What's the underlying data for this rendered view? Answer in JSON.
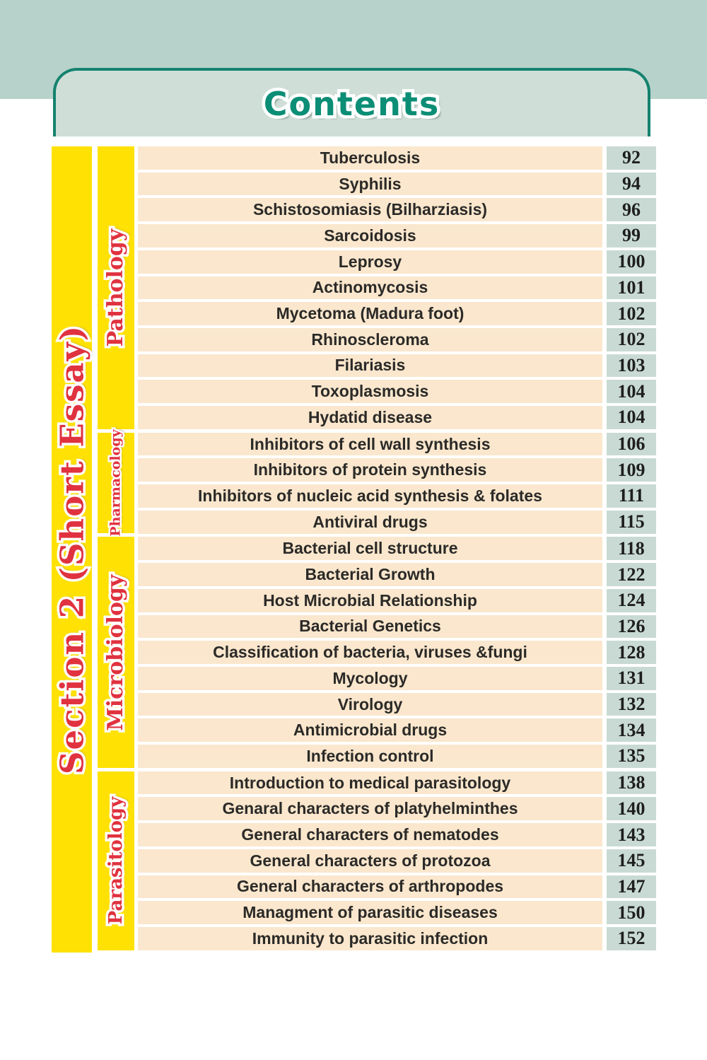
{
  "page": {
    "title": "Contents"
  },
  "section_bar": {
    "label": "Section 2 (Short Essay)"
  },
  "colors": {
    "top_band": "#b7d2ca",
    "header_fill": "#cfdfd8",
    "header_border": "#14826e",
    "title_text": "#0b8e75",
    "bar_yellow": "#ffe103",
    "label_red": "#e0323f",
    "topic_cell": "#fae7cd",
    "page_number_cell": "#c9dad4",
    "topic_text": "#2b2a28"
  },
  "sections": [
    {
      "name": "Pathology",
      "rows": [
        {
          "topic": "Tuberculosis",
          "page": "92"
        },
        {
          "topic": "Syphilis",
          "page": "94"
        },
        {
          "topic": "Schistosomiasis (Bilharziasis)",
          "page": "96"
        },
        {
          "topic": "Sarcoidosis",
          "page": "99"
        },
        {
          "topic": "Leprosy",
          "page": "100"
        },
        {
          "topic": "Actinomycosis",
          "page": "101"
        },
        {
          "topic": "Mycetoma (Madura foot)",
          "page": "102"
        },
        {
          "topic": "Rhinoscleroma",
          "page": "102"
        },
        {
          "topic": "Filariasis",
          "page": "103"
        },
        {
          "topic": "Toxoplasmosis",
          "page": "104"
        },
        {
          "topic": "Hydatid disease",
          "page": "104"
        }
      ]
    },
    {
      "name": "Pharmacology",
      "rows": [
        {
          "topic": "Inhibitors of cell wall synthesis",
          "page": "106"
        },
        {
          "topic": "Inhibitors of protein synthesis",
          "page": "109"
        },
        {
          "topic": "Inhibitors of nucleic acid synthesis & folates",
          "page": "111"
        },
        {
          "topic": "Antiviral drugs",
          "page": "115"
        }
      ]
    },
    {
      "name": "Microbiology",
      "rows": [
        {
          "topic": "Bacterial cell structure",
          "page": "118"
        },
        {
          "topic": "Bacterial Growth",
          "page": "122"
        },
        {
          "topic": "Host Microbial Relationship",
          "page": "124"
        },
        {
          "topic": "Bacterial Genetics",
          "page": "126"
        },
        {
          "topic": "Classification of bacteria, viruses &fungi",
          "page": "128"
        },
        {
          "topic": "Mycology",
          "page": "131"
        },
        {
          "topic": "Virology",
          "page": "132"
        },
        {
          "topic": "Antimicrobial drugs",
          "page": "134"
        },
        {
          "topic": "Infection control",
          "page": "135"
        }
      ]
    },
    {
      "name": "Parasitology",
      "rows": [
        {
          "topic": "Introduction to medical parasitology",
          "page": "138"
        },
        {
          "topic": "Genaral characters of platyhelminthes",
          "page": "140"
        },
        {
          "topic": "General characters of nematodes",
          "page": "143"
        },
        {
          "topic": "General characters of protozoa",
          "page": "145"
        },
        {
          "topic": "General characters of arthropodes",
          "page": "147"
        },
        {
          "topic": "Managment of parasitic diseases",
          "page": "150"
        },
        {
          "topic": "Immunity to parasitic infection",
          "page": "152"
        }
      ]
    }
  ]
}
